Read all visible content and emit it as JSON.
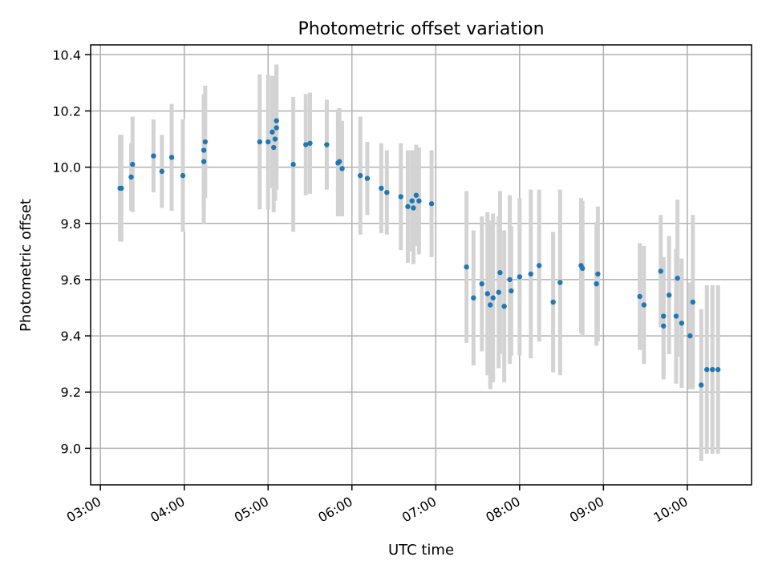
{
  "chart_data": {
    "type": "scatter",
    "title": "Photometric offset variation",
    "xlabel": "UTC time",
    "ylabel": "Photometric offset",
    "x_ticks": [
      "03:00",
      "04:00",
      "05:00",
      "06:00",
      "07:00",
      "08:00",
      "09:00",
      "10:00"
    ],
    "y_ticks": [
      "9.0",
      "9.2",
      "9.4",
      "9.6",
      "9.8",
      "10.0",
      "10.2",
      "10.4"
    ],
    "xlim": [
      "02:53",
      "10:46"
    ],
    "ylim": [
      8.87,
      10.435
    ],
    "grid": true,
    "marker_color": "#1f77b4",
    "errorbar_color": "#d3d3d3",
    "series": [
      {
        "x": [
          "03:14",
          "03:15",
          "03:22",
          "03:23",
          "03:38",
          "03:44",
          "03:51",
          "03:59",
          "04:14",
          "04:14",
          "04:15",
          "04:54",
          "05:00",
          "05:03",
          "05:04",
          "05:05",
          "05:06",
          "05:06",
          "05:18",
          "05:27",
          "05:30",
          "05:42",
          "05:50",
          "05:51",
          "05:53",
          "06:06",
          "06:11",
          "06:21",
          "06:25",
          "06:35",
          "06:40",
          "06:43",
          "06:44",
          "06:46",
          "06:48",
          "06:57",
          "07:22",
          "07:27",
          "07:33",
          "07:37",
          "07:39",
          "07:41",
          "07:45",
          "07:46",
          "07:49",
          "07:53",
          "07:54",
          "08:00",
          "08:08",
          "08:14",
          "08:24",
          "08:29",
          "08:44",
          "08:45",
          "08:55",
          "08:56",
          "09:26",
          "09:29",
          "09:41",
          "09:43",
          "09:43",
          "09:47",
          "09:52",
          "09:53",
          "09:56",
          "10:02",
          "10:04",
          "10:10",
          "10:14",
          "10:18",
          "10:22"
        ],
        "y": [
          9.925,
          9.925,
          9.965,
          10.01,
          10.04,
          9.985,
          10.035,
          9.97,
          10.06,
          10.02,
          10.09,
          10.09,
          10.09,
          10.125,
          10.07,
          10.1,
          10.14,
          10.165,
          10.01,
          10.08,
          10.085,
          10.08,
          10.015,
          10.02,
          9.995,
          9.97,
          9.96,
          9.925,
          9.91,
          9.895,
          9.86,
          9.88,
          9.855,
          9.9,
          9.88,
          9.87,
          9.645,
          9.535,
          9.585,
          9.55,
          9.51,
          9.535,
          9.555,
          9.625,
          9.505,
          9.6,
          9.56,
          9.61,
          9.62,
          9.65,
          9.52,
          9.59,
          9.65,
          9.64,
          9.585,
          9.62,
          9.54,
          9.51,
          9.63,
          9.435,
          9.47,
          9.545,
          9.47,
          9.605,
          9.445,
          9.4,
          9.52,
          9.225,
          9.28,
          9.28,
          9.28
        ],
        "yerr": [
          0.19,
          0.19,
          0.12,
          0.17,
          0.13,
          0.13,
          0.19,
          0.2,
          0.2,
          0.22,
          0.2,
          0.24,
          0.24,
          0.2,
          0.23,
          0.22,
          0.22,
          0.2,
          0.24,
          0.18,
          0.18,
          0.16,
          0.19,
          0.19,
          0.17,
          0.21,
          0.13,
          0.16,
          0.15,
          0.19,
          0.2,
          0.18,
          0.2,
          0.18,
          0.19,
          0.19,
          0.27,
          0.24,
          0.24,
          0.29,
          0.3,
          0.3,
          0.27,
          0.29,
          0.27,
          0.3,
          0.23,
          0.28,
          0.3,
          0.27,
          0.25,
          0.33,
          0.24,
          0.24,
          0.22,
          0.24,
          0.19,
          0.21,
          0.2,
          0.19,
          0.21,
          0.21,
          0.24,
          0.28,
          0.23,
          0.19,
          0.31,
          0.27,
          0.3,
          0.3,
          0.3
        ]
      }
    ]
  }
}
